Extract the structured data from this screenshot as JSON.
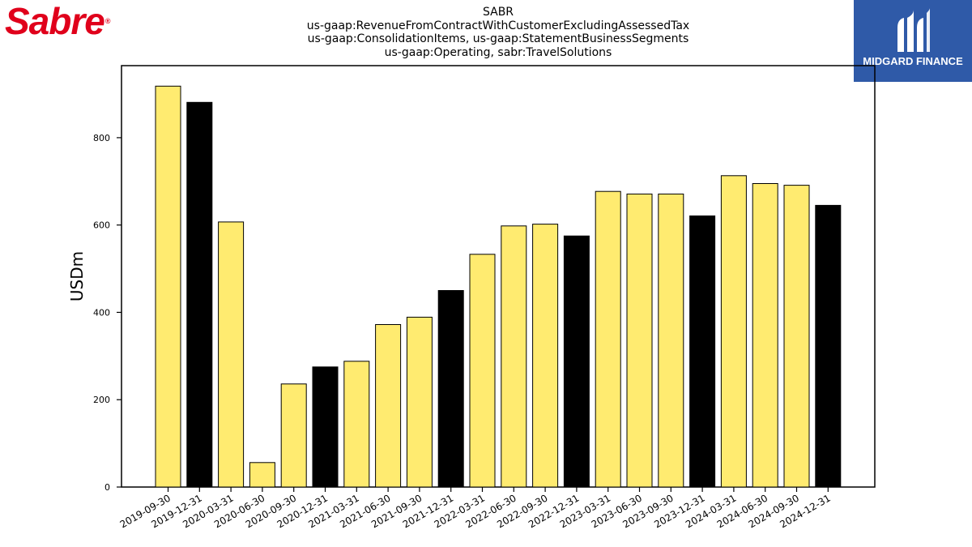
{
  "header": {
    "logo_text": "Sabre",
    "logo_mark": "®",
    "title_lines": [
      "SABR",
      "us-gaap:RevenueFromContractWithCustomerExcludingAssessedTax",
      "us-gaap:ConsolidationItems, us-gaap:StatementBusinessSegments",
      "us-gaap:Operating, sabr:TravelSolutions"
    ],
    "badge_text": "MIDGARD FINANCE",
    "badge_color": "#2f5aa8",
    "logo_color": "#e0001b"
  },
  "chart_data": {
    "type": "bar",
    "ylabel": "USDm",
    "xlabel": "",
    "ylim": [
      0,
      965
    ],
    "yticks": [
      0,
      200,
      400,
      600,
      800
    ],
    "grid": false,
    "colors": {
      "quarter": "#ffeb70",
      "year_end": "#000000"
    },
    "categories": [
      "2019-09-30",
      "2019-12-31",
      "2020-03-31",
      "2020-06-30",
      "2020-09-30",
      "2020-12-31",
      "2021-03-31",
      "2021-06-30",
      "2021-09-30",
      "2021-12-31",
      "2022-03-31",
      "2022-06-30",
      "2022-09-30",
      "2022-12-31",
      "2023-03-31",
      "2023-06-30",
      "2023-09-30",
      "2023-12-31",
      "2024-03-31",
      "2024-06-30",
      "2024-09-30",
      "2024-12-31"
    ],
    "values": [
      918,
      881,
      607,
      56,
      236,
      275,
      288,
      372,
      389,
      450,
      533,
      598,
      602,
      575,
      677,
      671,
      671,
      621,
      713,
      695,
      691,
      645
    ],
    "year_end": [
      false,
      true,
      false,
      false,
      false,
      true,
      false,
      false,
      false,
      true,
      false,
      false,
      false,
      true,
      false,
      false,
      false,
      true,
      false,
      false,
      false,
      true
    ]
  }
}
